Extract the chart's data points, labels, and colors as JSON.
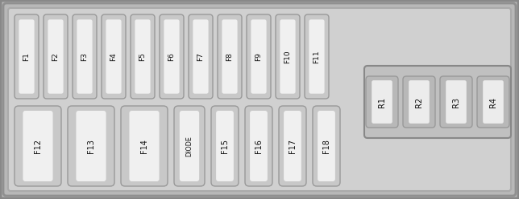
{
  "outer_bg": "#b8b8b8",
  "panel_bg": "#d0d0d0",
  "fuse_fill_dark": "#c8c8c8",
  "fuse_fill_light": "#f0f0f0",
  "fuse_stroke": "#999999",
  "relay_panel_bg": "#c0c0c0",
  "relay_fill_dark": "#b8b8b8",
  "relay_fill_light": "#ececec",
  "relay_stroke": "#999999",
  "text_color": "#111111",
  "outer_border": "#888888",
  "panel_border": "#aaaaaa",
  "top_fuses": [
    "F1",
    "F2",
    "F3",
    "F4",
    "F5",
    "F6",
    "F7",
    "F8",
    "F9",
    "F10",
    "F11"
  ],
  "bottom_fuses": [
    "F12",
    "F13",
    "F14",
    "DIODE",
    "F15",
    "F16",
    "F17",
    "F18"
  ],
  "relays": [
    "R1",
    "R2",
    "R3",
    "R4"
  ],
  "fig_width": 6.44,
  "fig_height": 2.48,
  "dpi": 100
}
